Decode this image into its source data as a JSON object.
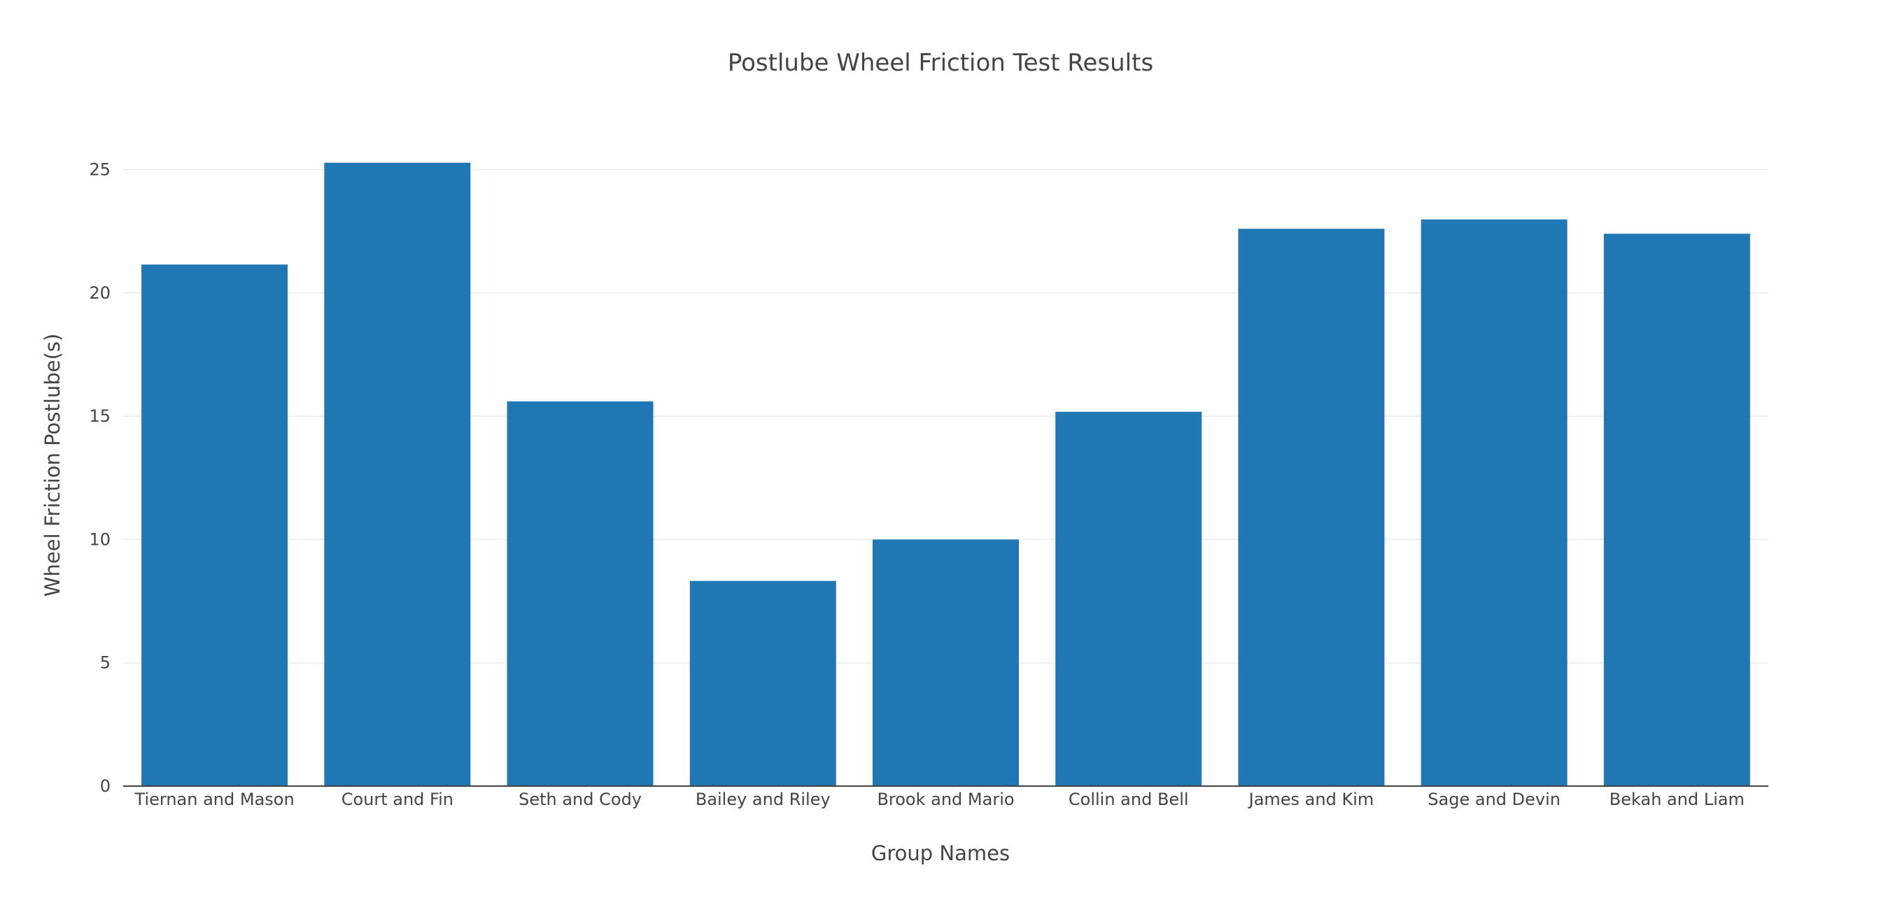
{
  "chart_data": {
    "type": "bar",
    "title": "Postlube Wheel Friction Test Results",
    "xlabel": "Group Names",
    "ylabel": "Wheel Friction Postlube(s)",
    "categories": [
      "Tiernan and Mason",
      "Court and Fin",
      "Seth and Cody",
      "Bailey and Riley",
      "Brook and Mario",
      "Collin and Bell",
      "James and Kim",
      "Sage and Devin",
      "Bekah and Liam"
    ],
    "values": [
      21.15,
      25.28,
      15.6,
      8.32,
      10.0,
      15.18,
      22.6,
      22.98,
      22.4
    ],
    "ylim": [
      0,
      27
    ],
    "yticks": [
      0,
      5,
      10,
      15,
      20,
      25
    ],
    "grid": true,
    "bar_color": "#1f77b4"
  }
}
